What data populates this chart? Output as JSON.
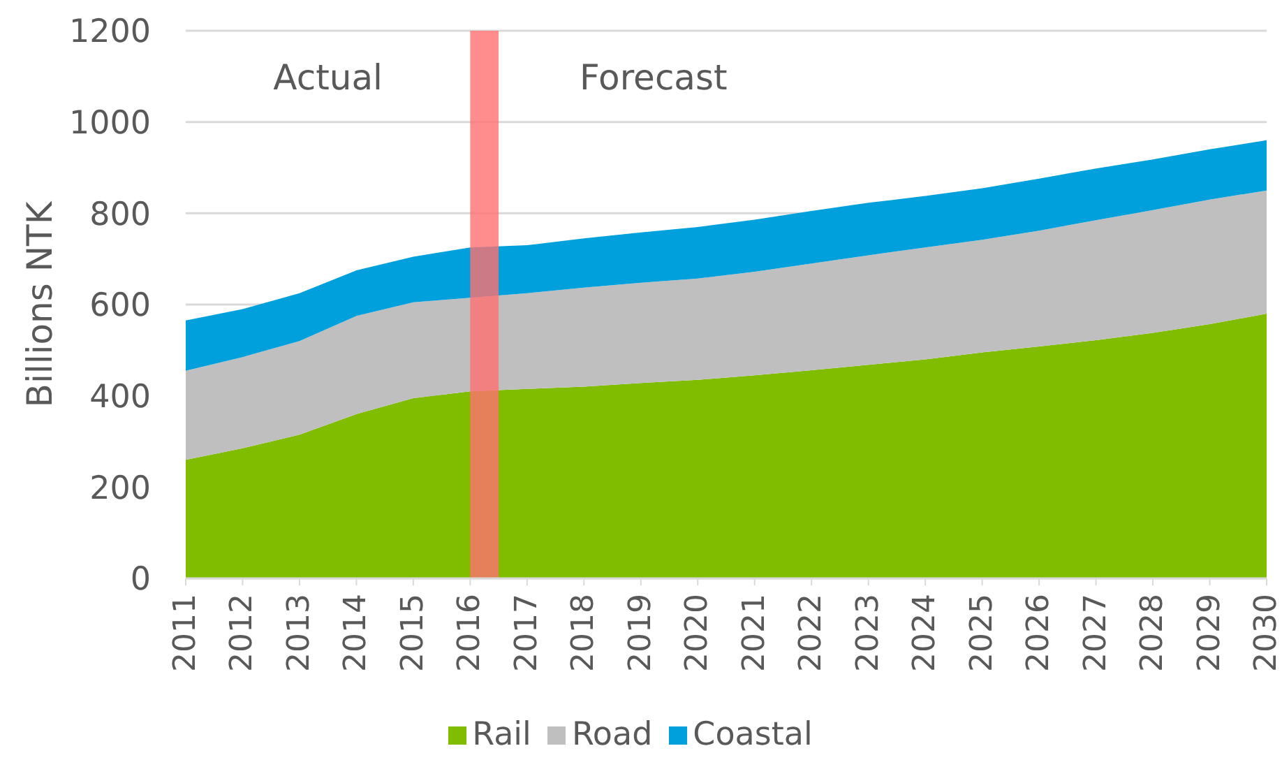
{
  "chart_data": {
    "type": "area",
    "stacked": true,
    "x": [
      2011,
      2012,
      2013,
      2014,
      2015,
      2016,
      2017,
      2018,
      2019,
      2020,
      2021,
      2022,
      2023,
      2024,
      2025,
      2026,
      2027,
      2028,
      2029,
      2030
    ],
    "xlim": [
      2011,
      2030
    ],
    "xticks": [
      2011,
      2012,
      2013,
      2014,
      2015,
      2016,
      2017,
      2018,
      2019,
      2020,
      2021,
      2022,
      2023,
      2024,
      2025,
      2026,
      2027,
      2028,
      2029,
      2030
    ],
    "ylim": [
      0,
      1200
    ],
    "yticks": [
      0,
      200,
      400,
      600,
      800,
      1000,
      1200
    ],
    "ylabel": "Billions NTK",
    "series": [
      {
        "name": "Rail",
        "color": "#80bc00",
        "values": [
          260,
          285,
          315,
          360,
          395,
          410,
          415,
          420,
          428,
          435,
          445,
          456,
          468,
          480,
          495,
          508,
          522,
          538,
          557,
          580
        ]
      },
      {
        "name": "Road",
        "color": "#bfbfbf",
        "values": [
          195,
          200,
          205,
          215,
          210,
          205,
          210,
          217,
          220,
          222,
          227,
          234,
          240,
          245,
          247,
          254,
          263,
          269,
          273,
          270
        ]
      },
      {
        "name": "Coastal",
        "color": "#00a0dc",
        "values": [
          110,
          105,
          105,
          100,
          100,
          110,
          105,
          108,
          110,
          113,
          114,
          115,
          115,
          113,
          113,
          114,
          113,
          111,
          110,
          110
        ]
      }
    ],
    "grid": "y",
    "legend": "bottom",
    "bands": [
      {
        "axis": "x",
        "from": 2016,
        "to": 2016.5,
        "color": "#ff7070"
      }
    ],
    "annotations": [
      "Actual",
      "Forecast"
    ]
  }
}
